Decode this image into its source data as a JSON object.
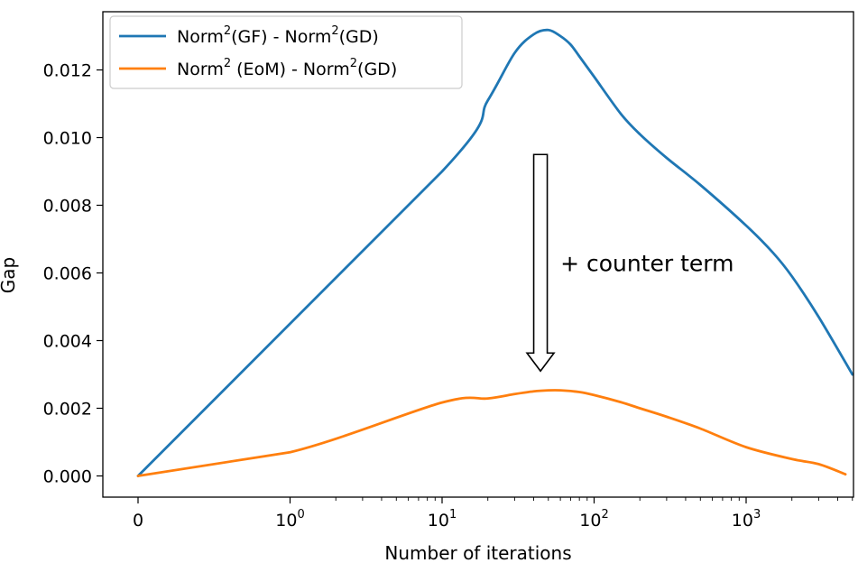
{
  "chart_data": {
    "type": "line",
    "title": "",
    "xlabel": "Number of iterations",
    "ylabel": "Gap",
    "x_scale": "symlog",
    "xlim": [
      -0.7,
      7000
    ],
    "ylim": [
      -0.0006,
      0.0137
    ],
    "x_ticks": [
      {
        "value": 0,
        "base": "0",
        "exp": ""
      },
      {
        "value": 1,
        "base": "10",
        "exp": "0"
      },
      {
        "value": 10,
        "base": "10",
        "exp": "1"
      },
      {
        "value": 100,
        "base": "10",
        "exp": "2"
      },
      {
        "value": 1000,
        "base": "10",
        "exp": "3"
      }
    ],
    "y_ticks": [
      {
        "value": 0.0,
        "label": "0.000"
      },
      {
        "value": 0.002,
        "label": "0.002"
      },
      {
        "value": 0.004,
        "label": "0.004"
      },
      {
        "value": 0.006,
        "label": "0.006"
      },
      {
        "value": 0.008,
        "label": "0.008"
      },
      {
        "value": 0.01,
        "label": "0.010"
      },
      {
        "value": 0.012,
        "label": "0.012"
      }
    ],
    "series": [
      {
        "name": "Norm²(GF) - Norm²(GD)",
        "legend_parts": [
          "Norm",
          "2",
          "(GF)  - Norm",
          "2",
          "(GD)"
        ],
        "color": "#1f77b4",
        "x": [
          0,
          10,
          20,
          30,
          40,
          50,
          60,
          70,
          80,
          100,
          150,
          200,
          300,
          500,
          1000,
          1500,
          2000,
          3000,
          5000
        ],
        "y": [
          0,
          0.009,
          0.0111,
          0.0125,
          0.01305,
          0.01318,
          0.013,
          0.01275,
          0.0124,
          0.0118,
          0.0107,
          0.0101,
          0.0094,
          0.0086,
          0.0074,
          0.0066,
          0.0059,
          0.0047,
          0.003
        ]
      },
      {
        "name": "Norm²(EoM) - Norm²(GD)",
        "legend_parts": [
          "Norm",
          "2",
          " (EoM)  - Norm",
          "2",
          "(GD)"
        ],
        "color": "#ff7f0e",
        "x": [
          0,
          1,
          10,
          20,
          30,
          40,
          50,
          60,
          80,
          100,
          150,
          200,
          300,
          500,
          1000,
          2000,
          3000,
          4500
        ],
        "y": [
          0,
          0.0007,
          0.00217,
          0.00229,
          0.00242,
          0.0025,
          0.00253,
          0.00253,
          0.00248,
          0.00239,
          0.00218,
          0.002,
          0.00175,
          0.0014,
          0.00085,
          0.0005,
          0.00035,
          5e-05
        ]
      }
    ],
    "annotation": {
      "text": "+ counter term",
      "arrow_from": {
        "x": 45,
        "y": 0.0095
      },
      "arrow_to": {
        "x": 45,
        "y": 0.0031
      }
    },
    "legend_position": "upper-left",
    "grid": false
  }
}
